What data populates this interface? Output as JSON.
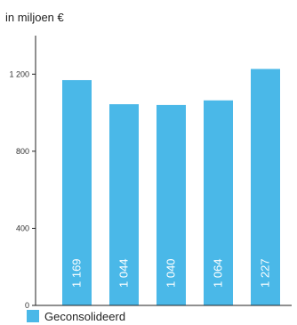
{
  "chart_data": {
    "type": "bar",
    "unit_label": "in miljoen €",
    "categories": [
      "",
      "",
      "",
      "",
      ""
    ],
    "series": [
      {
        "name": "Geconsolideerd",
        "values": [
          1169,
          1044,
          1040,
          1064,
          1227
        ],
        "color": "#4ab8e8"
      }
    ],
    "value_labels": [
      "1 169",
      "1 044",
      "1 040",
      "1 064",
      "1 227"
    ],
    "yticks": [
      0,
      400,
      800,
      1200
    ],
    "ytick_labels": [
      "0",
      "400",
      "800",
      "1 200"
    ],
    "ylim": [
      0,
      1400
    ],
    "grid": false,
    "legend": "bottom-left",
    "axis_color": "#222222"
  }
}
